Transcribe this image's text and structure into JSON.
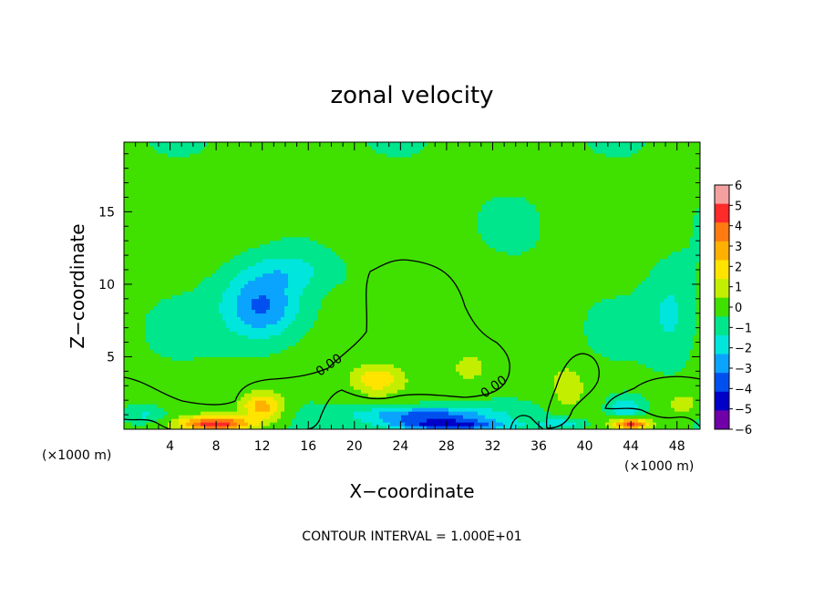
{
  "chart_data": {
    "type": "heatmap",
    "title": "zonal velocity",
    "xlabel": "X−coordinate",
    "ylabel": "Z−coordinate",
    "x_unit_left": "(×1000 m)",
    "x_unit_right": "(×1000 m)",
    "footer": "CONTOUR INTERVAL = 1.000E+01",
    "xlim": [
      0,
      50
    ],
    "ylim": [
      0,
      19.8
    ],
    "x_ticks": [
      "4",
      "8",
      "12",
      "16",
      "20",
      "24",
      "28",
      "32",
      "36",
      "40",
      "44",
      "48"
    ],
    "x_tick_values": [
      4,
      8,
      12,
      16,
      20,
      24,
      28,
      32,
      36,
      40,
      44,
      48
    ],
    "y_ticks": [
      "5",
      "10",
      "15"
    ],
    "y_tick_values": [
      5,
      10,
      15
    ],
    "contour_labels": [
      {
        "text": "0.00",
        "x": 18.0,
        "z": 4.2
      },
      {
        "text": "0.00",
        "x": 32.3,
        "z": 2.7
      }
    ],
    "colorbar": {
      "labels": [
        "6",
        "5",
        "4",
        "3",
        "2",
        "1",
        "0",
        "−1",
        "−2",
        "−3",
        "−4",
        "−5",
        "−6"
      ],
      "colors": [
        "#f5a0a0",
        "#ff2a2a",
        "#ff7a10",
        "#ffb000",
        "#ffe400",
        "#c4ee00",
        "#40e000",
        "#00e68c",
        "#00e6dc",
        "#0aa4ff",
        "#0050f0",
        "#0000c8",
        "#7000a8"
      ]
    },
    "features": [
      {
        "x": 12.0,
        "z": 8.5,
        "sx": 3.4,
        "sz": 2.3,
        "value": -3.6
      },
      {
        "x": 14.5,
        "z": 11.0,
        "sx": 4.0,
        "sz": 1.3,
        "value": -1.4
      },
      {
        "x": 11.5,
        "z": 13.0,
        "sx": 5.5,
        "sz": 3.0,
        "value": 0.3
      },
      {
        "x": 26.0,
        "z": 8.0,
        "sx": 6.0,
        "sz": 4.0,
        "value": 0.5
      },
      {
        "x": 12.0,
        "z": 1.6,
        "sx": 1.8,
        "sz": 1.0,
        "value": 3.5
      },
      {
        "x": 22.0,
        "z": 3.5,
        "sx": 2.2,
        "sz": 1.0,
        "value": 2.5
      },
      {
        "x": 30.0,
        "z": 4.2,
        "sx": 1.2,
        "sz": 0.8,
        "value": 1.4
      },
      {
        "x": 8.0,
        "z": 0.4,
        "sx": 3.0,
        "sz": 0.5,
        "value": 5.5
      },
      {
        "x": 26.0,
        "z": 1.0,
        "sx": 6.0,
        "sz": 0.6,
        "value": -3.8
      },
      {
        "x": 28.0,
        "z": 0.3,
        "sx": 5.0,
        "sz": 0.4,
        "value": -4.2
      },
      {
        "x": 43.5,
        "z": 1.5,
        "sx": 1.5,
        "sz": 0.8,
        "value": -2.5
      },
      {
        "x": 44.0,
        "z": 0.4,
        "sx": 1.5,
        "sz": 0.4,
        "value": 5.0
      },
      {
        "x": 2.0,
        "z": 1.0,
        "sx": 1.8,
        "sz": 0.6,
        "value": -1.5
      },
      {
        "x": 38.0,
        "z": 0.4,
        "sx": 2.0,
        "sz": 0.4,
        "value": -1.8
      },
      {
        "x": 47.5,
        "z": 8.0,
        "sx": 2.0,
        "sz": 3.0,
        "value": -1.4
      },
      {
        "x": 38.5,
        "z": 3.0,
        "sx": 1.5,
        "sz": 1.5,
        "value": 1.5
      },
      {
        "x": 48.5,
        "z": 1.8,
        "sx": 1.2,
        "sz": 0.6,
        "value": 1.8
      }
    ],
    "background_value": -0.3
  }
}
